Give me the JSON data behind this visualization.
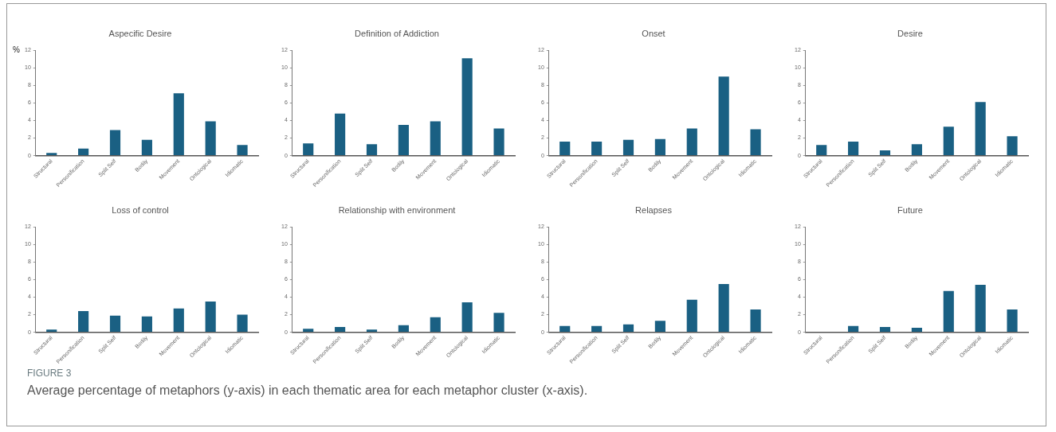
{
  "chart_data": [
    {
      "type": "bar",
      "title": "Aspecific Desire",
      "ylabel": "%",
      "categories": [
        "Structural",
        "Personification",
        "Split Self",
        "Bodily",
        "Movement",
        "Ontological",
        "Idiomatic"
      ],
      "values": [
        0.3,
        0.8,
        2.9,
        1.8,
        7.1,
        3.9,
        1.2
      ],
      "color": "#1a6083",
      "ylim": [
        0,
        12
      ],
      "yticks": [
        0,
        2,
        4,
        6,
        8,
        10,
        12
      ],
      "grid": false,
      "legend": false
    },
    {
      "type": "bar",
      "title": "Definition of Addiction",
      "categories": [
        "Structural",
        "Personification",
        "Split Self",
        "Bodily",
        "Movement",
        "Ontological",
        "Idiomatic"
      ],
      "values": [
        1.4,
        4.8,
        1.3,
        3.5,
        3.9,
        11.1,
        3.1
      ],
      "color": "#1a6083",
      "ylim": [
        0,
        12
      ],
      "yticks": [
        0,
        2,
        4,
        6,
        8,
        10,
        12
      ],
      "grid": false,
      "legend": false
    },
    {
      "type": "bar",
      "title": "Onset",
      "categories": [
        "Structural",
        "Personification",
        "Split Self",
        "Bodily",
        "Movement",
        "Ontological",
        "Idiomatic"
      ],
      "values": [
        1.6,
        1.6,
        1.8,
        1.9,
        3.1,
        9.0,
        3.0
      ],
      "color": "#1a6083",
      "ylim": [
        0,
        12
      ],
      "yticks": [
        0,
        2,
        4,
        6,
        8,
        10,
        12
      ],
      "grid": false,
      "legend": false
    },
    {
      "type": "bar",
      "title": "Desire",
      "categories": [
        "Structural",
        "Personification",
        "Split Self",
        "Bodily",
        "Movement",
        "Ontological",
        "Idiomatic"
      ],
      "values": [
        1.2,
        1.6,
        0.6,
        1.3,
        3.3,
        6.1,
        2.2
      ],
      "color": "#1a6083",
      "ylim": [
        0,
        12
      ],
      "yticks": [
        0,
        2,
        4,
        6,
        8,
        10,
        12
      ],
      "grid": false,
      "legend": false
    },
    {
      "type": "bar",
      "title": "Loss of control",
      "categories": [
        "Structural",
        "Personification",
        "Split Self",
        "Bodily",
        "Movement",
        "Ontological",
        "Idiomatic"
      ],
      "values": [
        0.3,
        2.4,
        1.9,
        1.8,
        2.7,
        3.5,
        2.0
      ],
      "color": "#1a6083",
      "ylim": [
        0,
        12
      ],
      "yticks": [
        0,
        2,
        4,
        6,
        8,
        10,
        12
      ],
      "grid": false,
      "legend": false
    },
    {
      "type": "bar",
      "title": "Relationship with environment",
      "categories": [
        "Structural",
        "Personification",
        "Split Self",
        "Bodily",
        "Movement",
        "Ontological",
        "Idiomatic"
      ],
      "values": [
        0.4,
        0.6,
        0.3,
        0.8,
        1.7,
        3.4,
        2.2
      ],
      "color": "#1a6083",
      "ylim": [
        0,
        12
      ],
      "yticks": [
        0,
        2,
        4,
        6,
        8,
        10,
        12
      ],
      "grid": false,
      "legend": false
    },
    {
      "type": "bar",
      "title": "Relapses",
      "categories": [
        "Structural",
        "Personification",
        "Split Self",
        "Bodily",
        "Movement",
        "Ontological",
        "Idiomatic"
      ],
      "values": [
        0.7,
        0.7,
        0.9,
        1.3,
        3.7,
        5.5,
        2.6
      ],
      "color": "#1a6083",
      "ylim": [
        0,
        12
      ],
      "yticks": [
        0,
        2,
        4,
        6,
        8,
        10,
        12
      ],
      "grid": false,
      "legend": false
    },
    {
      "type": "bar",
      "title": "Future",
      "categories": [
        "Structural",
        "Personification",
        "Split Self",
        "Bodily",
        "Movement",
        "Ontological",
        "Idiomatic"
      ],
      "values": [
        0,
        0.7,
        0.6,
        0.5,
        4.7,
        5.4,
        2.6
      ],
      "color": "#1a6083",
      "ylim": [
        0,
        12
      ],
      "yticks": [
        0,
        2,
        4,
        6,
        8,
        10,
        12
      ],
      "grid": false,
      "legend": false,
      "annotations": [
        "FIGURE 3",
        "Average percentage of metaphors (y-axis) in each thematic area for each metaphor cluster (x-axis)."
      ]
    }
  ]
}
